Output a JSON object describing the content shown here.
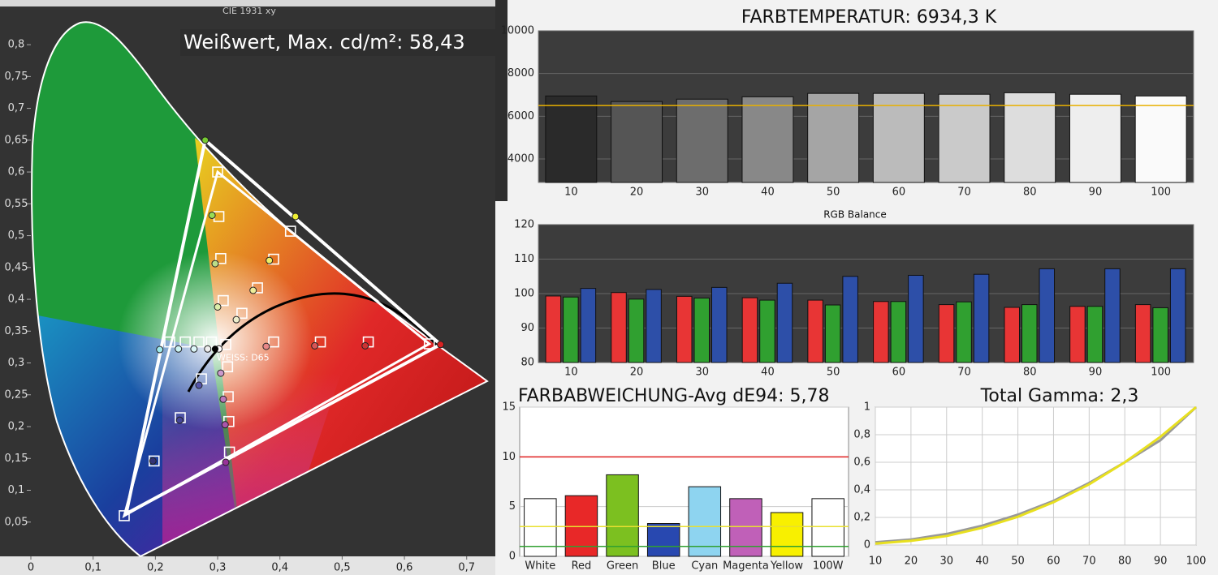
{
  "chart_data": [
    {
      "type": "cie",
      "title": "CIE 1931 xy",
      "annotation": "Weißwert, Max. cd/m²: 58,43",
      "white_point_label": "WEISS: D65",
      "xlim": [
        0,
        0.746
      ],
      "ylim": [
        0,
        0.86
      ],
      "xticks": [
        0,
        {
          "value": 0.1,
          "label": "0,1"
        },
        {
          "value": 0.2,
          "label": "0,2"
        },
        {
          "value": 0.3,
          "label": "0,3"
        },
        {
          "value": 0.4,
          "label": "0,4"
        },
        {
          "value": 0.5,
          "label": "0,5"
        },
        {
          "value": 0.6,
          "label": "0,6"
        },
        {
          "value": 0.7,
          "label": "0,7"
        }
      ],
      "yticks": [
        {
          "value": 0.05,
          "label": "0,05"
        },
        {
          "value": 0.1,
          "label": "0,1"
        },
        {
          "value": 0.15,
          "label": "0,15"
        },
        {
          "value": 0.2,
          "label": "0,2"
        },
        {
          "value": 0.25,
          "label": "0,25"
        },
        {
          "value": 0.3,
          "label": "0,3"
        },
        {
          "value": 0.35,
          "label": "0,35"
        },
        {
          "value": 0.4,
          "label": "0,4"
        },
        {
          "value": 0.45,
          "label": "0,45"
        },
        {
          "value": 0.5,
          "label": "0,5"
        },
        {
          "value": 0.55,
          "label": "0,55"
        },
        {
          "value": 0.6,
          "label": "0,6"
        },
        {
          "value": 0.65,
          "label": "0,65"
        },
        {
          "value": 0.7,
          "label": "0,7"
        },
        {
          "value": 0.75,
          "label": "0,75"
        },
        {
          "value": 0.8,
          "label": "0,8"
        }
      ],
      "target_gamut": {
        "x": [
          0.64,
          0.3,
          0.15
        ],
        "y": [
          0.33,
          0.6,
          0.06
        ]
      },
      "measured_gamut": {
        "x": [
          0.658,
          0.28,
          0.153
        ],
        "y": [
          0.329,
          0.65,
          0.063
        ]
      },
      "target_points": {
        "x": [
          0.223,
          0.248,
          0.27,
          0.29,
          0.313,
          0.39,
          0.465,
          0.542,
          0.64,
          0.302,
          0.305,
          0.309,
          0.3,
          0.417,
          0.39,
          0.364,
          0.339,
          0.274,
          0.24,
          0.198,
          0.15,
          0.316,
          0.317,
          0.318,
          0.319
        ],
        "y": [
          0.333,
          0.333,
          0.333,
          0.333,
          0.329,
          0.333,
          0.333,
          0.333,
          0.33,
          0.53,
          0.464,
          0.398,
          0.6,
          0.507,
          0.463,
          0.418,
          0.378,
          0.275,
          0.214,
          0.146,
          0.06,
          0.294,
          0.247,
          0.208,
          0.16
        ]
      },
      "measured_points": {
        "x": [
          0.207,
          0.237,
          0.262,
          0.284,
          0.302,
          0.378,
          0.456,
          0.537,
          0.658,
          0.28,
          0.291,
          0.296,
          0.3,
          0.425,
          0.383,
          0.357,
          0.33,
          0.27,
          0.239,
          0.196,
          0.305,
          0.309,
          0.312,
          0.313
        ],
        "y": [
          0.321,
          0.322,
          0.322,
          0.322,
          0.322,
          0.326,
          0.327,
          0.327,
          0.329,
          0.65,
          0.532,
          0.456,
          0.388,
          0.53,
          0.461,
          0.414,
          0.368,
          0.265,
          0.21,
          0.146,
          0.284,
          0.243,
          0.203,
          0.144
        ],
        "colors": [
          "#9ee8ee",
          "#ccf4f4",
          "#ddf8f8",
          "#eeeeee",
          "#ffffff",
          "#e88888",
          "#d85555",
          "#cc3333",
          "#d82222",
          "#77cc33",
          "#99dd55",
          "#bbdd88",
          "#ddeeaa",
          "#eeee33",
          "#eeee66",
          "#eeee99",
          "#eeeecc",
          "#5555aa",
          "#444499",
          "#333377",
          "#cc99cc",
          "#bb77bb",
          "#aa55aa",
          "#993399"
        ]
      },
      "white_point": {
        "x": 0.296,
        "y": 0.322
      }
    },
    {
      "type": "bar",
      "title": "FARBTEMPERATUR: 6934,3 K",
      "categories": [
        "10",
        "20",
        "30",
        "40",
        "50",
        "60",
        "70",
        "80",
        "90",
        "100"
      ],
      "values": [
        6950,
        6690,
        6800,
        6910,
        7070,
        7070,
        7030,
        7100,
        7030,
        6950
      ],
      "colors": [
        "#2a2a2a",
        "#555555",
        "#6d6d6d",
        "#888888",
        "#a5a5a5",
        "#bbbbbb",
        "#cacaca",
        "#dddddd",
        "#eeeeee",
        "#fafafa"
      ],
      "reference_lines": [
        {
          "value": 6500,
          "color": "#e8b000"
        }
      ],
      "ylim": [
        2900,
        10000
      ],
      "yticks": [
        4000,
        6000,
        8000,
        10000
      ],
      "grid": true
    },
    {
      "type": "bar",
      "title": "RGB Balance",
      "categories": [
        "10",
        "20",
        "30",
        "40",
        "50",
        "60",
        "70",
        "80",
        "90",
        "100"
      ],
      "series": [
        {
          "color": "#e83535",
          "values": [
            99.3,
            100.3,
            99.2,
            98.8,
            98.1,
            97.7,
            96.8,
            96,
            96.3,
            96.8
          ]
        },
        {
          "color": "#30a030",
          "values": [
            99,
            98.4,
            98.7,
            98.1,
            96.7,
            97.7,
            97.6,
            96.8,
            96.3,
            95.9
          ]
        },
        {
          "color": "#2d4fa8",
          "values": [
            101.5,
            101.2,
            101.8,
            103,
            105,
            105.3,
            105.6,
            107.2,
            107.2,
            107.2
          ]
        }
      ],
      "ylim": [
        80,
        120
      ],
      "yticks": [
        80,
        90,
        100,
        110,
        120
      ],
      "grid": true
    },
    {
      "type": "bar",
      "title": "FARBABWEICHUNG-Avg dE94: 5,78",
      "categories": [
        "White",
        "Red",
        "Green",
        "Blue",
        "Cyan",
        "Magenta",
        "Yellow",
        "100W"
      ],
      "values": [
        5.8,
        6.1,
        8.2,
        3.3,
        7.0,
        5.8,
        4.4,
        5.8
      ],
      "colors": [
        "#ffffff",
        "#e82828",
        "#7cc020",
        "#2848b0",
        "#8ed4f0",
        "#c060b8",
        "#f8f000",
        "#ffffff"
      ],
      "reference_lines": [
        {
          "value": 10,
          "color": "#e02020"
        },
        {
          "value": 3,
          "color": "#e8e030"
        },
        {
          "value": 1,
          "color": "#30a030"
        }
      ],
      "ylim": [
        0,
        15
      ],
      "yticks": [
        0,
        5,
        10,
        15
      ],
      "grid": true
    },
    {
      "type": "line",
      "title": "Total Gamma: 2,3",
      "x": [
        10,
        20,
        30,
        40,
        50,
        60,
        70,
        80,
        90,
        100
      ],
      "series": [
        {
          "color": "#999999",
          "values": [
            0.02,
            0.04,
            0.08,
            0.14,
            0.22,
            0.32,
            0.45,
            0.6,
            0.76,
            1
          ]
        },
        {
          "color": "#e8e020",
          "values": [
            0.01,
            0.03,
            0.065,
            0.125,
            0.205,
            0.31,
            0.44,
            0.6,
            0.785,
            1
          ]
        }
      ],
      "xlim": [
        10,
        100
      ],
      "xticks": [
        10,
        20,
        30,
        40,
        50,
        60,
        70,
        80,
        90,
        100
      ],
      "ylim": [
        0,
        1
      ],
      "yticks": [
        0,
        {
          "value": 0.2,
          "label": "0,2"
        },
        {
          "value": 0.4,
          "label": "0,4"
        },
        {
          "value": 0.6,
          "label": "0,6"
        },
        {
          "value": 0.8,
          "label": "0,8"
        },
        1
      ],
      "grid": true
    }
  ]
}
